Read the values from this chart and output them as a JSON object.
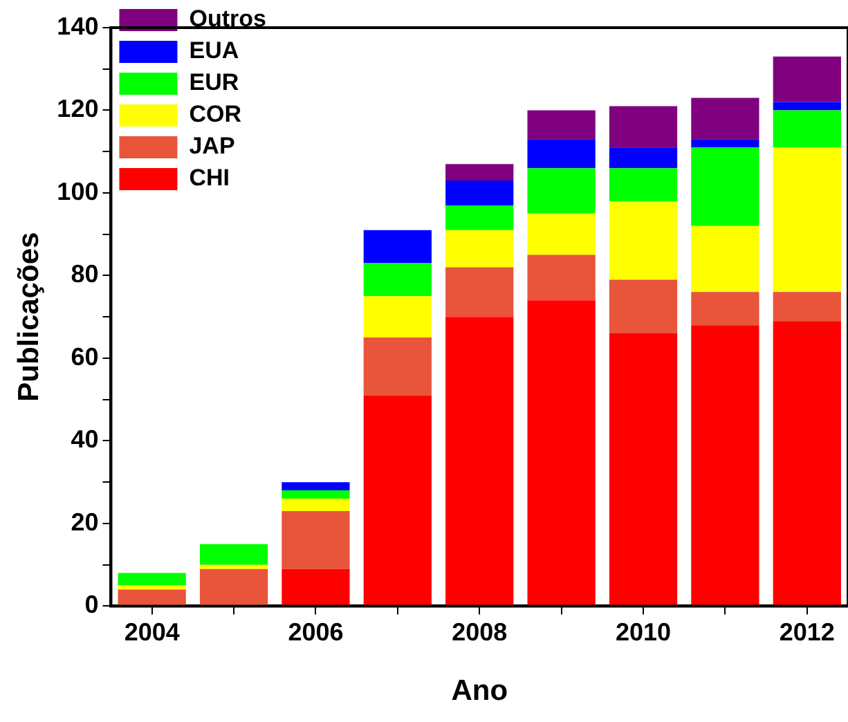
{
  "chart_data": {
    "type": "bar",
    "xlabel": "Ano",
    "ylabel": "Publicações",
    "stacked": true,
    "legend": "top left",
    "grid": false,
    "categories": [
      "2004",
      null,
      "2006",
      null,
      "2008",
      null,
      "2010",
      null,
      "2012"
    ],
    "ylim": [
      0,
      140
    ],
    "yticks": [
      0,
      {
        "value": 10,
        "label": null
      },
      20,
      {
        "value": 30,
        "label": null
      },
      40,
      {
        "value": 50,
        "label": null
      },
      60,
      {
        "value": 70,
        "label": null
      },
      80,
      {
        "value": 90,
        "label": null
      },
      100,
      {
        "value": 110,
        "label": null
      },
      120,
      {
        "value": 130,
        "label": null
      },
      140
    ],
    "series": [
      {
        "name": "CHI",
        "color": "#ff0000",
        "values": [
          0,
          0,
          9,
          51,
          70,
          74,
          66,
          68,
          69
        ]
      },
      {
        "name": "JAP",
        "color": "#e8553a",
        "values": [
          4,
          9,
          14,
          14,
          12,
          11,
          13,
          8,
          7
        ]
      },
      {
        "name": "COR",
        "color": "#ffff00",
        "values": [
          1,
          1,
          3,
          10,
          9,
          10,
          19,
          16,
          35
        ]
      },
      {
        "name": "EUR",
        "color": "#00ff00",
        "values": [
          3,
          5,
          2,
          8,
          6,
          11,
          8,
          19,
          9
        ]
      },
      {
        "name": "EUA",
        "color": "#0000ff",
        "values": [
          0,
          0,
          2,
          8,
          6,
          7,
          5,
          2,
          2
        ]
      },
      {
        "name": "Outros",
        "color": "#800080",
        "values": [
          0,
          0,
          0,
          0,
          4,
          7,
          10,
          10,
          11
        ]
      }
    ]
  }
}
